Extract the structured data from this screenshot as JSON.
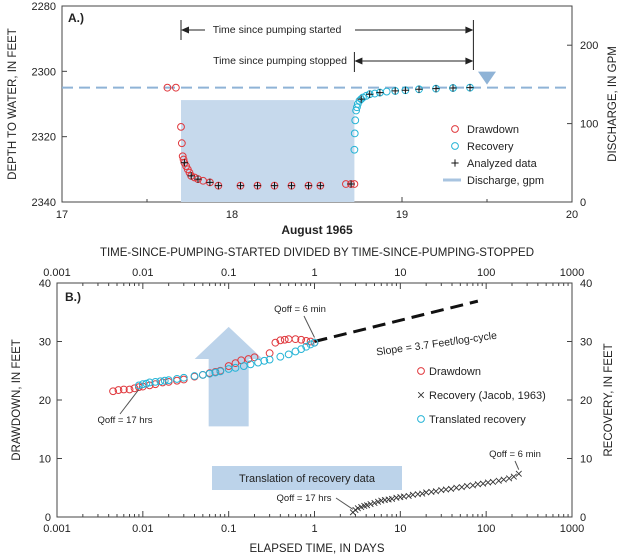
{
  "chart_data": [
    {
      "panel": "A.)",
      "type": "scatter",
      "xlabel": "August 1965",
      "ylabel_left": "DEPTH TO WATER, IN FEET",
      "ylabel_right": "DISCHARGE, IN GPM",
      "xlim": [
        17,
        20
      ],
      "ylim_left": [
        2280,
        2340
      ],
      "ylim_right": [
        0,
        250
      ],
      "y_left_inverted": true,
      "x_ticks": [
        "17",
        "18",
        "19",
        "20"
      ],
      "y_left_ticks": [
        "2280",
        "2300",
        "2320",
        "2340"
      ],
      "y_right_ticks": [
        "0",
        "100",
        "200"
      ],
      "annotations": [
        "Time since pumping started",
        "Time since pumping stopped"
      ],
      "static_level_depth": 2305,
      "discharge": {
        "name": "Discharge, gpm",
        "start": 17.7,
        "end": 18.72,
        "rate_gpm": 130,
        "color": "#c6d9ec"
      },
      "series": [
        {
          "name": "Drawdown",
          "marker": "circle",
          "color": "#e0393e",
          "x": [
            17.62,
            17.67,
            17.7,
            17.705,
            17.71,
            17.715,
            17.72,
            17.73,
            17.74,
            17.75,
            17.76,
            17.78,
            17.8,
            17.83,
            17.87,
            17.92,
            18.05,
            18.15,
            18.25,
            18.35,
            18.45,
            18.52,
            18.67,
            18.7,
            18.72
          ],
          "y": [
            2305,
            2305,
            2317,
            2322,
            2326,
            2327,
            2328,
            2329,
            2330,
            2331,
            2332,
            2332.5,
            2333,
            2333.5,
            2334,
            2335,
            2335,
            2335,
            2335,
            2335,
            2335,
            2335,
            2334.5,
            2334.5,
            2334.5
          ]
        },
        {
          "name": "Recovery",
          "marker": "circle",
          "color": "#26b4d6",
          "x": [
            18.72,
            18.722,
            18.725,
            18.73,
            18.735,
            18.74,
            18.75,
            18.76,
            18.77,
            18.79,
            18.81,
            18.84,
            18.87,
            18.91,
            18.96,
            19.02,
            19.1,
            19.2,
            19.3,
            19.4
          ],
          "y": [
            2324,
            2319,
            2315,
            2312,
            2311,
            2310,
            2309,
            2308.5,
            2308,
            2307.5,
            2307,
            2306.8,
            2306.5,
            2306.2,
            2306,
            2305.8,
            2305.5,
            2305.3,
            2305.1,
            2305
          ]
        },
        {
          "name": "Analyzed data",
          "marker": "plus",
          "color": "#111111",
          "x": [
            17.72,
            17.76,
            17.8,
            17.87,
            17.92,
            18.05,
            18.15,
            18.25,
            18.35,
            18.45,
            18.52,
            18.7,
            18.76,
            18.81,
            18.87,
            18.96,
            19.02,
            19.1,
            19.2,
            19.3,
            19.4
          ],
          "y": [
            2328,
            2332,
            2333,
            2334,
            2335,
            2335,
            2335,
            2335,
            2335,
            2335,
            2335,
            2334.5,
            2308.5,
            2307,
            2306.5,
            2306,
            2305.8,
            2305.5,
            2305.3,
            2305.1,
            2305
          ]
        }
      ]
    },
    {
      "panel": "B.)",
      "type": "scatter",
      "xscale": "log",
      "xlabel": "ELAPSED TIME, IN DAYS",
      "x2label": "TIME-SINCE-PUMPING-STARTED  DIVIDED BY TIME-SINCE-PUMPING-STOPPED",
      "ylabel_left": "DRAWDOWN, IN FEET",
      "ylabel_right": "RECOVERY, IN FEET",
      "xlim": [
        0.001,
        1000
      ],
      "ylim": [
        0,
        40
      ],
      "x_ticks": [
        "0.001",
        "0.01",
        "0.1",
        "1",
        "10",
        "100",
        "1000"
      ],
      "y_ticks": [
        "0",
        "10",
        "20",
        "30",
        "40"
      ],
      "annotations": {
        "qoff_6_top": "Qoff = 6 min",
        "qoff_17_left": "Qoff = 17 hrs",
        "qoff_6_bottom": "Qoff = 6 min",
        "qoff_17_bottom": "Qoff = 17 hrs",
        "slope": "Slope = 3.7 Feet/log-cycle",
        "translation": "Translation of recovery data"
      },
      "slope_line": {
        "x": [
          1,
          80
        ],
        "y": [
          30,
          36.9
        ]
      },
      "series": [
        {
          "name": "Drawdown",
          "marker": "circle",
          "color": "#e0393e",
          "x": [
            0.0045,
            0.0052,
            0.006,
            0.007,
            0.008,
            0.009,
            0.01,
            0.012,
            0.014,
            0.017,
            0.02,
            0.025,
            0.03,
            0.04,
            0.05,
            0.06,
            0.07,
            0.08,
            0.1,
            0.12,
            0.14,
            0.17,
            0.2,
            0.3,
            0.35,
            0.4,
            0.45,
            0.5,
            0.6,
            0.7,
            0.8,
            0.9,
            1.0
          ],
          "y": [
            21.5,
            21.7,
            21.8,
            21.8,
            22.0,
            22.2,
            22.3,
            22.5,
            22.7,
            23.0,
            23.1,
            23.3,
            23.5,
            24.0,
            24.3,
            24.6,
            24.8,
            25.0,
            25.8,
            26.3,
            26.8,
            27.0,
            27.3,
            28.0,
            29.8,
            30.2,
            30.3,
            30.4,
            30.4,
            30.3,
            30.1,
            30.0,
            29.8
          ]
        },
        {
          "name": "Recovery (Jacob, 1963)",
          "marker": "x",
          "color": "#333333",
          "x": [
            2.8,
            3,
            3.2,
            3.5,
            3.8,
            4.1,
            4.5,
            5,
            5.5,
            6,
            6.6,
            7.3,
            8,
            9,
            10,
            11,
            12.5,
            14,
            16,
            18,
            20,
            23,
            26,
            30,
            34,
            39,
            45,
            52,
            60,
            70,
            80,
            92,
            105,
            120,
            140,
            160,
            185,
            210,
            240
          ],
          "y": [
            0.8,
            1.2,
            1.5,
            1.7,
            1.9,
            2.0,
            2.2,
            2.4,
            2.6,
            2.8,
            2.9,
            3.0,
            3.1,
            3.3,
            3.4,
            3.5,
            3.6,
            3.8,
            3.9,
            4.0,
            4.2,
            4.3,
            4.4,
            4.6,
            4.7,
            4.8,
            5.0,
            5.1,
            5.3,
            5.4,
            5.6,
            5.7,
            5.9,
            6.0,
            6.2,
            6.4,
            6.6,
            6.9,
            7.4
          ]
        },
        {
          "name": "Translated recovery",
          "marker": "circle",
          "color": "#26b4d6",
          "x": [
            0.009,
            0.01,
            0.011,
            0.012,
            0.014,
            0.016,
            0.018,
            0.02,
            0.025,
            0.03,
            0.04,
            0.05,
            0.06,
            0.07,
            0.08,
            0.1,
            0.12,
            0.15,
            0.18,
            0.22,
            0.26,
            0.3,
            0.4,
            0.5,
            0.6,
            0.7,
            0.8,
            0.9,
            1.0
          ],
          "y": [
            22.5,
            22.7,
            22.8,
            23.0,
            23.1,
            23.2,
            23.3,
            23.4,
            23.6,
            23.8,
            24.1,
            24.3,
            24.5,
            24.7,
            24.9,
            25.3,
            25.5,
            25.8,
            26.1,
            26.4,
            26.7,
            26.9,
            27.4,
            27.8,
            28.3,
            28.7,
            29.1,
            29.5,
            29.8
          ]
        }
      ]
    }
  ]
}
